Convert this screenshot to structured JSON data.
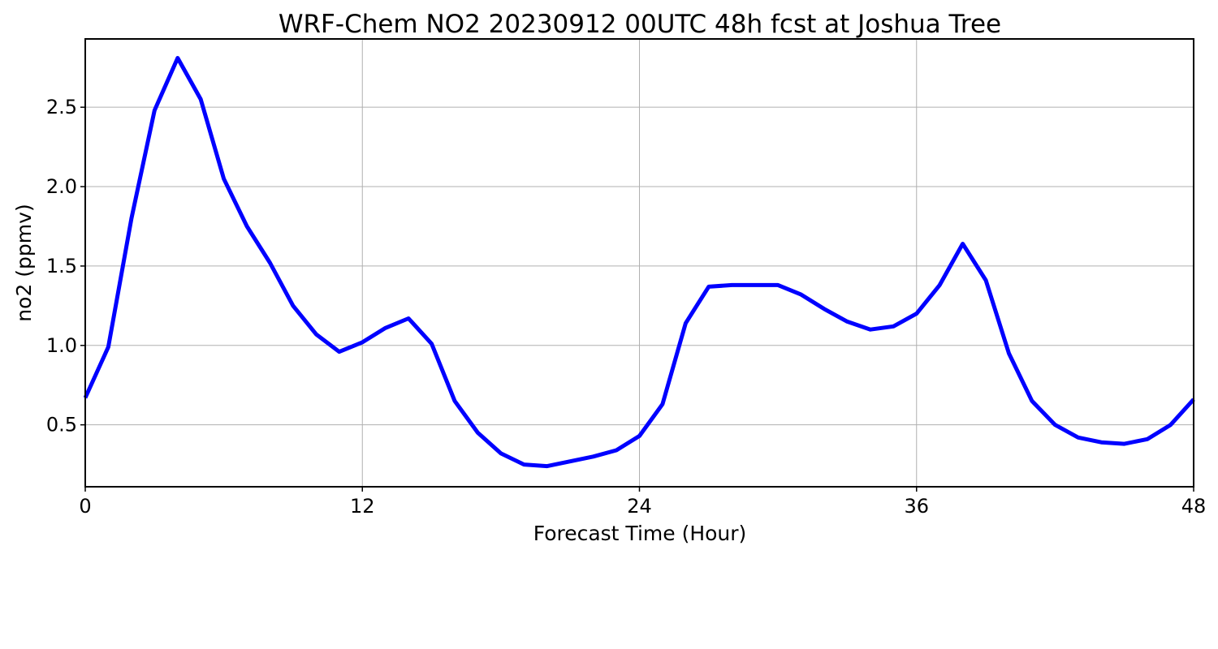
{
  "chart_data": {
    "type": "line",
    "title": "WRF-Chem NO2  20230912 00UTC 48h fcst at Joshua Tree",
    "xlabel": "Forecast Time (Hour)",
    "ylabel": "no2  (ppmv)",
    "xlim": [
      0,
      48
    ],
    "ylim": [
      0.11,
      2.93
    ],
    "xticks": [
      0,
      12,
      24,
      36,
      48
    ],
    "yticks": [
      0.5,
      1.0,
      1.5,
      2.0,
      2.5
    ],
    "xtick_labels": [
      "0",
      "12",
      "24",
      "36",
      "48"
    ],
    "ytick_labels": [
      "0.5",
      "1.0",
      "1.5",
      "2.0",
      "2.5"
    ],
    "grid": true,
    "series": [
      {
        "color": "#0000ff",
        "x": [
          0,
          1,
          2,
          3,
          4,
          5,
          6,
          7,
          8,
          9,
          10,
          11,
          12,
          13,
          14,
          15,
          16,
          17,
          18,
          19,
          20,
          21,
          22,
          23,
          24,
          25,
          26,
          27,
          28,
          29,
          30,
          31,
          32,
          33,
          34,
          35,
          36,
          37,
          38,
          39,
          40,
          41,
          42,
          43,
          44,
          45,
          46,
          47,
          48
        ],
        "y": [
          0.67,
          0.99,
          1.8,
          2.48,
          2.81,
          2.55,
          2.05,
          1.75,
          1.52,
          1.25,
          1.07,
          0.96,
          1.02,
          1.11,
          1.17,
          1.01,
          0.65,
          0.45,
          0.32,
          0.25,
          0.24,
          0.27,
          0.3,
          0.34,
          0.43,
          0.63,
          1.14,
          1.37,
          1.38,
          1.38,
          1.38,
          1.32,
          1.23,
          1.15,
          1.1,
          1.12,
          1.2,
          1.38,
          1.64,
          1.41,
          0.95,
          0.65,
          0.5,
          0.42,
          0.39,
          0.38,
          0.41,
          0.5,
          0.66
        ]
      }
    ]
  }
}
